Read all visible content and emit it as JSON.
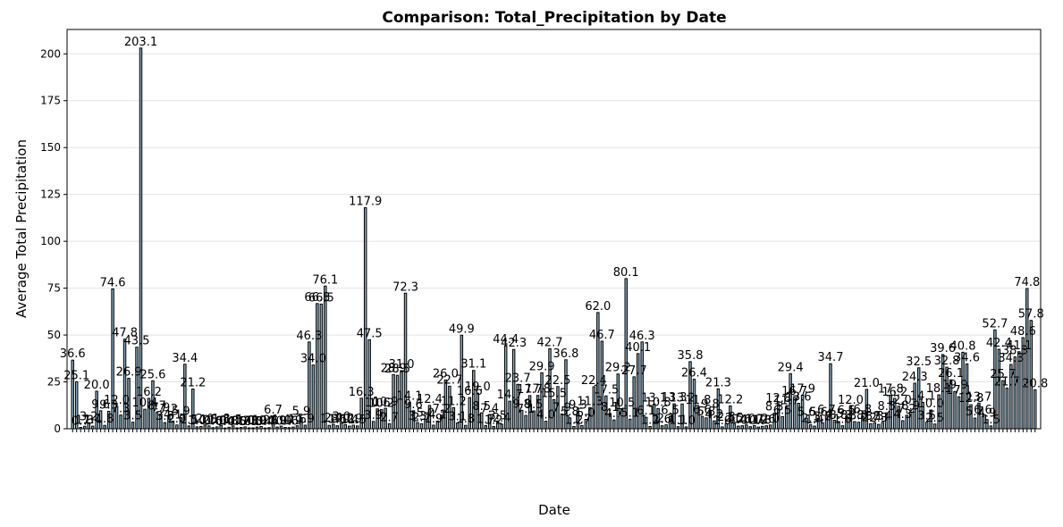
{
  "chart_data": {
    "type": "bar",
    "title": "Comparison: Total_Precipitation by Date",
    "xlabel": "Date",
    "ylabel": "Average Total Precipitation",
    "ylim": [
      0,
      213
    ],
    "yticks": [
      0,
      25,
      50,
      75,
      100,
      125,
      150,
      175,
      200
    ],
    "grid": "y",
    "bar_color": "#87a9bd",
    "values": [
      36.6,
      25.1,
      0.7,
      1.3,
      3.2,
      1.4,
      20.0,
      9.6,
      1.8,
      9.3,
      74.6,
      12.0,
      7.3,
      47.8,
      26.9,
      3.5,
      43.5,
      203.1,
      10.4,
      16.2,
      25.6,
      8.7,
      7.9,
      3.3,
      7.2,
      4.1,
      2.0,
      5.9,
      34.4,
      1.5,
      21.2,
      1.0,
      1.2,
      2.0,
      1.5,
      0.6,
      1.0,
      1.8,
      0.4,
      0.8,
      1.5,
      0.5,
      0.7,
      1.0,
      0.5,
      0.5,
      0.9,
      1.2,
      0.4,
      0.6,
      6.7,
      0.9,
      1.4,
      0.7,
      0.6,
      0.9,
      1.6,
      5.9,
      1.9,
      46.3,
      34.0,
      66.8,
      66.5,
      76.1,
      1.8,
      2.4,
      1.6,
      3.0,
      2.2,
      1.4,
      1.9,
      1.5,
      16.3,
      117.9,
      47.5,
      3.9,
      10.6,
      10.2,
      10.9,
      2.7,
      28.9,
      28.5,
      31.0,
      72.3,
      14.1,
      9.6,
      3.3,
      2.7,
      5.0,
      12.4,
      1.9,
      4.1,
      7.2,
      26.0,
      22.7,
      11.2,
      3.1,
      49.9,
      1.8,
      16.6,
      31.1,
      19.0,
      8.5,
      1.7,
      7.4,
      1.2,
      3.5,
      2.4,
      44.4,
      14.7,
      42.3,
      23.7,
      9.8,
      7.1,
      17.7,
      9.5,
      17.8,
      29.9,
      4.0,
      42.7,
      15.5,
      22.5,
      7.9,
      36.8,
      5.8,
      1.2,
      9.3,
      1.7,
      5.0,
      11.3,
      22.4,
      62.0,
      46.7,
      17.5,
      8.1,
      4.7,
      29.2,
      10.5,
      80.1,
      5.1,
      27.7,
      40.1,
      46.3,
      6.1,
      1.2,
      13.1,
      10.8,
      1.6,
      2.1,
      6.5,
      13.3,
      1.1,
      13.2,
      1.0,
      35.8,
      26.4,
      11.8,
      6.6,
      5.8,
      9.8,
      4.2,
      21.3,
      1.0,
      2.8,
      12.2,
      2.5,
      1.4,
      1.6,
      2.0,
      1.1,
      1.7,
      0.9,
      1.3,
      1.6,
      2.0,
      8.3,
      12.8,
      6.5,
      11.7,
      29.4,
      16.7,
      13.6,
      17.9,
      5.6,
      2.1,
      1.4,
      5.6,
      3.2,
      6.7,
      34.7,
      4.5,
      3.8,
      1.6,
      6.5,
      12.0,
      3.8,
      3.5,
      6.8,
      21.0,
      2.7,
      3.3,
      2.3,
      3.4,
      8.5,
      17.8,
      16.2,
      12.0,
      4.3,
      7.2,
      8.9,
      24.3,
      32.5,
      14.1,
      3.5,
      10.0,
      2.5,
      18.1,
      39.6,
      32.8,
      26.1,
      19.9,
      17.1,
      40.8,
      34.6,
      12.8,
      5.7,
      13.7,
      6.6,
      4.9,
      1.5,
      52.7,
      42.4,
      25.7,
      21.7,
      34.3,
      38.3,
      41.1,
      48.6,
      74.8,
      57.8,
      20.8
    ]
  }
}
